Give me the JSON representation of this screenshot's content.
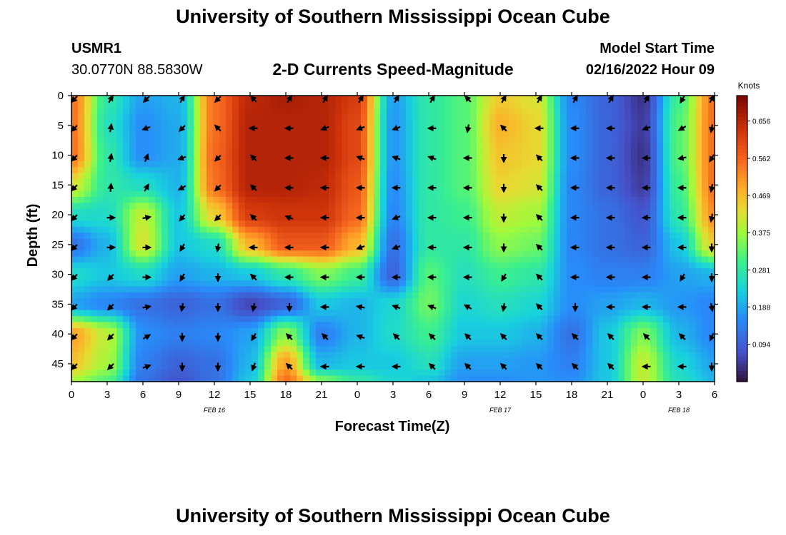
{
  "header": {
    "title": "University of Southern Mississippi Ocean Cube",
    "station_id": "USMR1",
    "coords": "30.0770N  88.5830W",
    "plot_title": "2-D Currents Speed-Magnitude",
    "model_label": "Model Start Time",
    "model_time": "02/16/2022 Hour 09"
  },
  "footer": {
    "title": "University of Southern Mississippi Ocean Cube"
  },
  "chart_data": {
    "type": "heatmap",
    "title": "2-D Currents Speed-Magnitude",
    "xlabel": "Forecast Time(Z)",
    "ylabel": "Depth (ft)",
    "x_ticks": [
      "0",
      "3",
      "6",
      "9",
      "12",
      "15",
      "18",
      "21",
      "0",
      "3",
      "6",
      "9",
      "12",
      "15",
      "18",
      "21",
      "0",
      "3",
      "6"
    ],
    "x_hours": [
      0,
      3,
      6,
      9,
      12,
      15,
      18,
      21,
      24,
      27,
      30,
      33,
      36,
      39,
      42,
      45,
      48,
      51,
      54
    ],
    "date_labels": [
      {
        "label": "FEB 16",
        "hour": 12
      },
      {
        "label": "FEB 17",
        "hour": 36
      },
      {
        "label": "FEB 18",
        "hour": 51
      }
    ],
    "y_ticks": [
      0,
      5,
      10,
      15,
      20,
      25,
      30,
      35,
      40,
      45
    ],
    "ylim": [
      0,
      48
    ],
    "xlim": [
      0,
      54
    ],
    "colorbar": {
      "label": "Knots",
      "ticks": [
        "0.656",
        "0.562",
        "0.469",
        "0.375",
        "0.281",
        "0.188",
        "0.094"
      ],
      "range": [
        0,
        0.72
      ]
    },
    "x_nodes": [
      0,
      3,
      6,
      9,
      12,
      15,
      18,
      21,
      24,
      27,
      30,
      33,
      36,
      39,
      42,
      45,
      48,
      51,
      54
    ],
    "y_nodes": [
      0,
      5,
      10,
      15,
      20,
      25,
      30,
      35,
      40,
      45,
      48
    ],
    "speed_grid": [
      [
        0.55,
        0.28,
        0.18,
        0.2,
        0.55,
        0.65,
        0.67,
        0.66,
        0.62,
        0.18,
        0.28,
        0.32,
        0.45,
        0.42,
        0.15,
        0.1,
        0.04,
        0.3,
        0.55
      ],
      [
        0.55,
        0.26,
        0.16,
        0.19,
        0.55,
        0.66,
        0.66,
        0.66,
        0.6,
        0.17,
        0.28,
        0.32,
        0.48,
        0.44,
        0.16,
        0.1,
        0.05,
        0.32,
        0.55
      ],
      [
        0.55,
        0.28,
        0.16,
        0.19,
        0.56,
        0.66,
        0.66,
        0.66,
        0.6,
        0.17,
        0.28,
        0.32,
        0.46,
        0.44,
        0.16,
        0.1,
        0.04,
        0.32,
        0.55
      ],
      [
        0.42,
        0.28,
        0.25,
        0.2,
        0.55,
        0.66,
        0.66,
        0.65,
        0.58,
        0.16,
        0.28,
        0.32,
        0.44,
        0.42,
        0.15,
        0.1,
        0.05,
        0.3,
        0.55
      ],
      [
        0.25,
        0.25,
        0.4,
        0.22,
        0.45,
        0.62,
        0.63,
        0.63,
        0.56,
        0.15,
        0.28,
        0.3,
        0.4,
        0.38,
        0.15,
        0.12,
        0.08,
        0.28,
        0.52
      ],
      [
        0.12,
        0.2,
        0.42,
        0.22,
        0.25,
        0.48,
        0.58,
        0.58,
        0.48,
        0.12,
        0.28,
        0.28,
        0.36,
        0.34,
        0.15,
        0.12,
        0.1,
        0.22,
        0.45
      ],
      [
        0.25,
        0.22,
        0.25,
        0.18,
        0.2,
        0.22,
        0.28,
        0.35,
        0.3,
        0.1,
        0.32,
        0.26,
        0.3,
        0.28,
        0.16,
        0.14,
        0.14,
        0.18,
        0.2
      ],
      [
        0.18,
        0.15,
        0.12,
        0.1,
        0.12,
        0.06,
        0.1,
        0.22,
        0.2,
        0.24,
        0.34,
        0.24,
        0.26,
        0.24,
        0.16,
        0.18,
        0.2,
        0.17,
        0.15
      ],
      [
        0.5,
        0.4,
        0.16,
        0.14,
        0.15,
        0.18,
        0.36,
        0.14,
        0.2,
        0.25,
        0.3,
        0.22,
        0.22,
        0.2,
        0.12,
        0.22,
        0.35,
        0.2,
        0.15
      ],
      [
        0.46,
        0.38,
        0.14,
        0.1,
        0.12,
        0.2,
        0.5,
        0.2,
        0.22,
        0.22,
        0.26,
        0.18,
        0.18,
        0.17,
        0.14,
        0.22,
        0.4,
        0.24,
        0.18
      ],
      [
        0.38,
        0.32,
        0.12,
        0.08,
        0.12,
        0.22,
        0.55,
        0.35,
        0.28,
        0.24,
        0.22,
        0.16,
        0.16,
        0.17,
        0.16,
        0.22,
        0.4,
        0.26,
        0.2
      ]
    ],
    "arrow_x": [
      0,
      3,
      6,
      9,
      12,
      15,
      18,
      21,
      24,
      27,
      30,
      33,
      36,
      39,
      42,
      45,
      48,
      51,
      54
    ],
    "arrow_y": [
      0,
      5,
      10,
      15,
      20,
      25,
      30,
      35,
      40,
      45
    ],
    "arrow_dir_deg": [
      [
        135,
        -60,
        135,
        -60,
        135,
        225,
        -60,
        -60,
        -60,
        -60,
        -60,
        225,
        -60,
        -60,
        -60,
        -60,
        -60,
        120,
        -60
      ],
      [
        135,
        -80,
        160,
        135,
        225,
        180,
        180,
        160,
        160,
        160,
        180,
        100,
        225,
        180,
        180,
        180,
        160,
        150,
        100
      ],
      [
        135,
        -80,
        -70,
        160,
        135,
        225,
        180,
        180,
        200,
        200,
        200,
        180,
        90,
        225,
        180,
        180,
        180,
        170,
        120
      ],
      [
        135,
        -85,
        -60,
        150,
        135,
        225,
        180,
        180,
        180,
        180,
        180,
        180,
        90,
        225,
        180,
        180,
        180,
        180,
        100
      ],
      [
        135,
        0,
        -10,
        130,
        135,
        225,
        200,
        180,
        180,
        160,
        180,
        180,
        90,
        225,
        180,
        180,
        180,
        180,
        100
      ],
      [
        135,
        0,
        0,
        120,
        100,
        180,
        180,
        180,
        160,
        160,
        180,
        180,
        90,
        225,
        180,
        180,
        180,
        180,
        90
      ],
      [
        135,
        135,
        0,
        120,
        90,
        225,
        180,
        180,
        180,
        180,
        180,
        180,
        120,
        225,
        180,
        180,
        180,
        120,
        90
      ],
      [
        135,
        135,
        -10,
        100,
        90,
        100,
        90,
        180,
        190,
        200,
        200,
        210,
        100,
        225,
        90,
        180,
        180,
        180,
        80
      ],
      [
        135,
        135,
        -30,
        90,
        90,
        120,
        225,
        225,
        200,
        225,
        225,
        225,
        225,
        225,
        225,
        225,
        225,
        225,
        115
      ],
      [
        135,
        135,
        -20,
        90,
        90,
        110,
        225,
        180,
        180,
        180,
        225,
        225,
        225,
        225,
        225,
        225,
        180,
        180,
        90
      ]
    ]
  }
}
